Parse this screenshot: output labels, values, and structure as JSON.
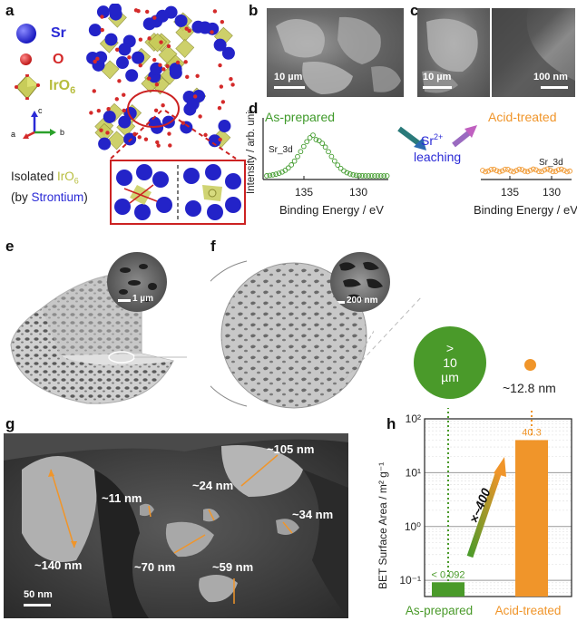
{
  "panel_labels": {
    "a": "a",
    "b": "b",
    "c": "c",
    "d": "d",
    "e": "e",
    "f": "f",
    "g": "g",
    "h": "h"
  },
  "panel_a": {
    "legend": [
      {
        "text": "Sr",
        "color": "#2a2ad6"
      },
      {
        "text": "O",
        "color": "#d42a2a"
      },
      {
        "text": "IrO",
        "sub": "6",
        "color": "#b7bd3d"
      }
    ],
    "axes": {
      "a": "a",
      "b": "b",
      "c": "c"
    },
    "caption_prefix": "Isolated ",
    "caption_iro": "IrO",
    "caption_sub": "6",
    "caption_by": "(by ",
    "caption_sr": "Strontium",
    "caption_close": ")"
  },
  "panel_b": {
    "scale": "10 µm"
  },
  "panel_c": {
    "scale_left": "10 µm",
    "scale_right": "100 nm"
  },
  "panel_d": {
    "ylabel": "Intensity / arb. units",
    "left_title": "As-prepared",
    "right_title": "Acid-treated",
    "arrow_text_1": "Sr",
    "arrow_text_sup": "2+",
    "arrow_text_2": "leaching",
    "peak_label": "Sr_3d",
    "xlabel": "Binding Energy / eV",
    "ticks": [
      "135",
      "130"
    ]
  },
  "panel_e": {
    "scale": "1 µm"
  },
  "panel_f": {
    "scale": "200 nm"
  },
  "panel_g": {
    "scale": "50 nm",
    "pores": [
      "~105 nm",
      "~24 nm",
      "~11 nm",
      "~34 nm",
      "~140 nm",
      "~70 nm",
      "~59 nm"
    ]
  },
  "circles": {
    "large": "> 10 µm",
    "large_lines": [
      ">",
      "10",
      "µm"
    ],
    "small": "~12.8 nm"
  },
  "chart_data": {
    "type": "bar",
    "categories": [
      "As-prepared",
      "Acid-treated"
    ],
    "values": [
      0.092,
      40.3
    ],
    "data_labels": [
      "< 0.092",
      "40.3"
    ],
    "colors": [
      "#4a9a2a",
      "#f0952a"
    ],
    "ylabel": "BET Surface Area / m² g⁻¹",
    "yscale": "log",
    "ylim": [
      0.05,
      100
    ],
    "yticks": [
      "10⁻¹",
      "10⁰",
      "10¹",
      "10²"
    ],
    "annotation": "×~400",
    "grid": true
  }
}
